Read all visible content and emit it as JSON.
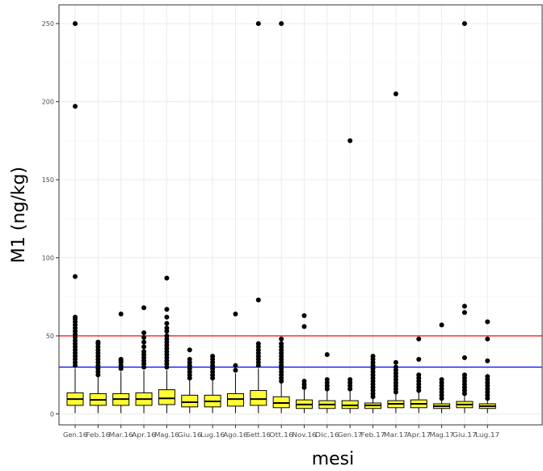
{
  "chart_data": {
    "type": "boxplot",
    "title": "",
    "xlabel": "mesi",
    "ylabel": "M1 (ng/kg)",
    "ylim": [
      -7,
      262
    ],
    "yticks": [
      0,
      50,
      100,
      150,
      200,
      250
    ],
    "grid": true,
    "box_color": "#ffff33",
    "categories": [
      "Gen.16",
      "Feb.16",
      "Mar.16",
      "Apr.16",
      "Mag.16",
      "Giu.16",
      "Lug.16",
      "Ago.16",
      "Sett.16",
      "Ott.16",
      "Nov.16",
      "Dic.16",
      "Gen.17",
      "Feb.17",
      "Mar.17",
      "Apr.17",
      "Mag.17",
      "Giu.17",
      "Lug.17"
    ],
    "boxes": [
      {
        "q1": 5.5,
        "median": 9.5,
        "q3": 13.5,
        "whisker_low": 0.5,
        "whisker_high": 29,
        "outliers": [
          31,
          33,
          35,
          37,
          39,
          41,
          43,
          45,
          47,
          49,
          51,
          53,
          55,
          57,
          59,
          61,
          62,
          88,
          197,
          250
        ]
      },
      {
        "q1": 5.5,
        "median": 9,
        "q3": 13,
        "whisker_low": 0.5,
        "whisker_high": 24,
        "outliers": [
          25,
          27,
          29,
          31,
          33,
          35,
          37,
          39,
          41,
          43,
          45,
          46
        ]
      },
      {
        "q1": 5.5,
        "median": 9.5,
        "q3": 13,
        "whisker_low": 0.5,
        "whisker_high": 27,
        "outliers": [
          29,
          31,
          33,
          34,
          35,
          64
        ]
      },
      {
        "q1": 5.5,
        "median": 9.5,
        "q3": 13.5,
        "whisker_low": 0.5,
        "whisker_high": 28,
        "outliers": [
          30,
          32,
          34,
          36,
          38,
          40,
          43,
          46,
          49,
          52,
          68
        ]
      },
      {
        "q1": 6,
        "median": 10,
        "q3": 15.5,
        "whisker_low": 0.5,
        "whisker_high": 28,
        "outliers": [
          30,
          32,
          34,
          36,
          38,
          40,
          42,
          44,
          46,
          48,
          50,
          53,
          55,
          58,
          62,
          67,
          87
        ]
      },
      {
        "q1": 4.5,
        "median": 7.5,
        "q3": 12,
        "whisker_low": 0.5,
        "whisker_high": 22,
        "outliers": [
          23,
          25,
          27,
          29,
          31,
          33,
          35,
          41
        ]
      },
      {
        "q1": 4.5,
        "median": 8,
        "q3": 12,
        "whisker_low": 0.5,
        "whisker_high": 22,
        "outliers": [
          23,
          25,
          27,
          29,
          31,
          33,
          35,
          37
        ]
      },
      {
        "q1": 5,
        "median": 9.5,
        "q3": 13,
        "whisker_low": 0.5,
        "whisker_high": 26,
        "outliers": [
          28,
          31,
          64
        ]
      },
      {
        "q1": 5.5,
        "median": 9.5,
        "q3": 15,
        "whisker_low": 0.5,
        "whisker_high": 29,
        "outliers": [
          31,
          33,
          35,
          37,
          39,
          41,
          43,
          45,
          73,
          250
        ]
      },
      {
        "q1": 4,
        "median": 7,
        "q3": 11,
        "whisker_low": 0.5,
        "whisker_high": 20,
        "outliers": [
          21,
          23,
          25,
          27,
          29,
          31,
          33,
          35,
          37,
          39,
          41,
          43,
          45,
          48,
          250
        ]
      },
      {
        "q1": 3.5,
        "median": 6,
        "q3": 9,
        "whisker_low": 0.5,
        "whisker_high": 16,
        "outliers": [
          17,
          19,
          21,
          56,
          63
        ]
      },
      {
        "q1": 3.5,
        "median": 6,
        "q3": 8.5,
        "whisker_low": 0.5,
        "whisker_high": 15,
        "outliers": [
          16,
          18,
          20,
          22,
          38
        ]
      },
      {
        "q1": 3.5,
        "median": 5.5,
        "q3": 8.5,
        "whisker_low": 0.5,
        "whisker_high": 15,
        "outliers": [
          16,
          18,
          20,
          22,
          175
        ]
      },
      {
        "q1": 3.5,
        "median": 5.5,
        "q3": 7,
        "whisker_low": 0.5,
        "whisker_high": 10,
        "outliers": [
          11,
          13,
          15,
          17,
          19,
          21,
          23,
          25,
          27,
          29,
          31,
          33,
          35,
          37
        ]
      },
      {
        "q1": 4,
        "median": 6.5,
        "q3": 8.5,
        "whisker_low": 0.5,
        "whisker_high": 13,
        "outliers": [
          14,
          16,
          18,
          20,
          22,
          24,
          26,
          28,
          30,
          33,
          205
        ]
      },
      {
        "q1": 4,
        "median": 6.5,
        "q3": 9,
        "whisker_low": 0.5,
        "whisker_high": 14,
        "outliers": [
          15,
          17,
          19,
          21,
          23,
          25,
          35,
          48
        ]
      },
      {
        "q1": 3.5,
        "median": 5,
        "q3": 6.5,
        "whisker_low": 0.5,
        "whisker_high": 9,
        "outliers": [
          10,
          12,
          14,
          16,
          18,
          20,
          22,
          57
        ]
      },
      {
        "q1": 4,
        "median": 6,
        "q3": 8,
        "whisker_low": 0.5,
        "whisker_high": 12,
        "outliers": [
          13,
          15,
          17,
          19,
          21,
          23,
          25,
          36,
          65,
          69,
          250
        ]
      },
      {
        "q1": 3.5,
        "median": 5,
        "q3": 6.5,
        "whisker_low": 0.5,
        "whisker_high": 9,
        "outliers": [
          10,
          12,
          14,
          16,
          18,
          20,
          22,
          24,
          34,
          48,
          59
        ]
      }
    ],
    "reference_lines": [
      {
        "value": 50,
        "color": "#ff0000"
      },
      {
        "value": 30,
        "color": "#0000ff"
      }
    ]
  }
}
